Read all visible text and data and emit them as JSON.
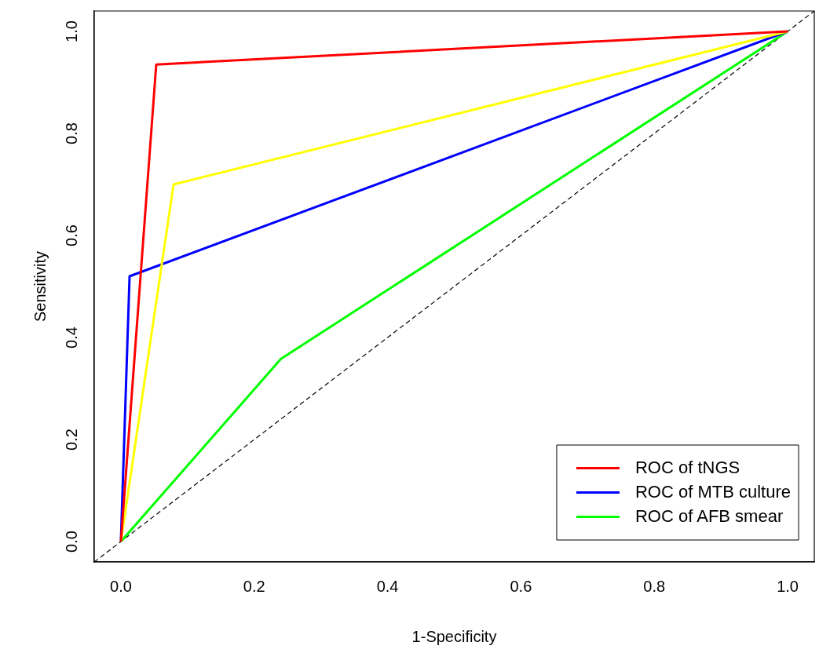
{
  "chart_data": {
    "type": "line",
    "xlabel": "1-Specificity",
    "ylabel": "Sensitivity",
    "xlim": [
      -0.04,
      1.04
    ],
    "ylim": [
      -0.04,
      1.04
    ],
    "xticks": [
      {
        "value": 0,
        "label": "0.0"
      },
      {
        "value": 0.2,
        "label": "0.2"
      },
      {
        "value": 0.4,
        "label": "0.4"
      },
      {
        "value": 0.6,
        "label": "0.6"
      },
      {
        "value": 0.8,
        "label": "0.8"
      },
      {
        "value": 1,
        "label": "1.0"
      }
    ],
    "yticks": [
      {
        "value": 0,
        "label": "0.0"
      },
      {
        "value": 0.2,
        "label": "0.2"
      },
      {
        "value": 0.4,
        "label": "0.4"
      },
      {
        "value": 0.6,
        "label": "0.6"
      },
      {
        "value": 0.8,
        "label": "0.8"
      },
      {
        "value": 1,
        "label": "1.0"
      }
    ],
    "grid": false,
    "legend": "bottom right",
    "marker": "none",
    "series": [
      {
        "name": "ROC of tNGS",
        "color": "#ff0000",
        "x": [
          0,
          0.053,
          1
        ],
        "values": [
          0,
          0.935,
          1
        ]
      },
      {
        "color": "#ffff00",
        "x": [
          0,
          0.079,
          1
        ],
        "values": [
          0,
          0.7,
          1
        ]
      },
      {
        "name": "ROC of MTB culture",
        "color": "#0000ff",
        "x": [
          0,
          0.013,
          1
        ],
        "values": [
          0,
          0.52,
          1
        ]
      },
      {
        "name": "ROC of AFB smear",
        "color": "#00ff00",
        "x": [
          0,
          0.24,
          1
        ],
        "values": [
          0,
          0.358,
          1
        ]
      },
      {
        "color": "#000000",
        "line_style": "dashed",
        "x": [
          -0.04,
          1.04
        ],
        "values": [
          -0.04,
          1.04
        ]
      }
    ]
  }
}
